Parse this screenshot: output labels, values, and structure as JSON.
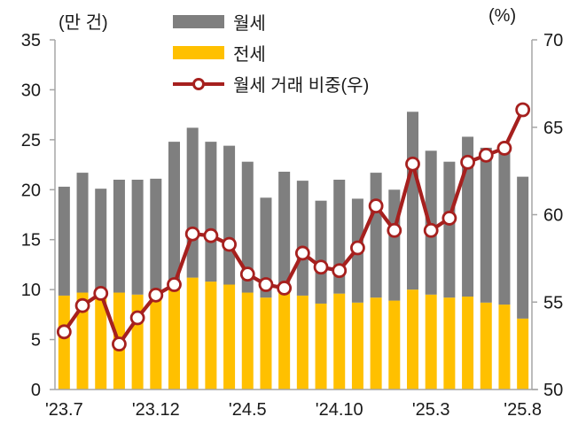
{
  "chart": {
    "left_axis_unit": "(만 건)",
    "right_axis_unit": "(%)"
  },
  "legend": {
    "wolse": "월세",
    "jeonse": "전세",
    "share": "월세 거래 비중(우)"
  },
  "colors": {
    "wolse_bar": "#7F7F7F",
    "jeonse_bar": "#FFC000",
    "share_line": "#A6201E",
    "marker_fill": "#FFFFFF",
    "axis": "#A6A6A6",
    "text": "#1A1A1A"
  },
  "chart_data": {
    "type": "bar",
    "subtype": "stacked-bars-with-right-axis-line",
    "title": "",
    "grid": false,
    "legend_position": "top",
    "categories": [
      "'23.7",
      "'23.8",
      "'23.9",
      "'23.10",
      "'23.11",
      "'23.12",
      "'24.1",
      "'24.2",
      "'24.3",
      "'24.4",
      "'24.5",
      "'24.6",
      "'24.7",
      "'24.8",
      "'24.9",
      "'24.10",
      "'24.11",
      "'24.12",
      "'25.1",
      "'25.2",
      "'25.3",
      "'25.4",
      "'25.5",
      "'25.6",
      "'25.7",
      "'25.8"
    ],
    "x_tick_indices": [
      0,
      5,
      10,
      15,
      20,
      25
    ],
    "x_tick_labels": [
      "'23.7",
      "'23.12",
      "'24.5",
      "'24.10",
      "'25.3",
      "'25.8"
    ],
    "left_axis": {
      "label": "(만 건)",
      "min": 0,
      "max": 35,
      "step": 5,
      "ticks": [
        35,
        30,
        25,
        20,
        15,
        10,
        5,
        0
      ]
    },
    "right_axis": {
      "label": "(%)",
      "min": 50,
      "max": 70,
      "step": 5,
      "ticks": [
        70,
        65,
        60,
        55,
        50
      ]
    },
    "series": [
      {
        "name": "월세",
        "type": "bar",
        "stack_order": "top",
        "axis": "left",
        "color": "#7F7F7F",
        "values": [
          10.9,
          12.0,
          10.2,
          11.3,
          11.5,
          11.1,
          14.2,
          15.0,
          14.0,
          13.9,
          13.1,
          10.0,
          11.6,
          11.5,
          10.3,
          11.4,
          10.4,
          12.5,
          11.1,
          17.8,
          14.4,
          13.6,
          16.0,
          15.5,
          15.6,
          14.2
        ]
      },
      {
        "name": "전세",
        "type": "bar",
        "stack_order": "bottom",
        "axis": "left",
        "color": "#FFC000",
        "values": [
          9.4,
          9.7,
          9.9,
          9.7,
          9.5,
          10.0,
          10.6,
          11.2,
          10.8,
          10.5,
          9.7,
          9.2,
          10.2,
          9.4,
          8.6,
          9.6,
          8.7,
          9.2,
          8.9,
          10.0,
          9.5,
          9.2,
          9.3,
          8.7,
          8.5,
          7.1
        ]
      },
      {
        "name": "월세 거래 비중(우)",
        "type": "line",
        "axis": "right",
        "color": "#A6201E",
        "values": [
          53.3,
          54.8,
          55.5,
          52.6,
          54.1,
          55.4,
          56.0,
          58.9,
          58.8,
          58.3,
          56.6,
          56.0,
          55.8,
          57.8,
          57.0,
          56.8,
          58.1,
          60.5,
          59.1,
          62.9,
          59.1,
          59.8,
          63.0,
          63.4,
          63.8,
          66.0
        ]
      }
    ]
  }
}
